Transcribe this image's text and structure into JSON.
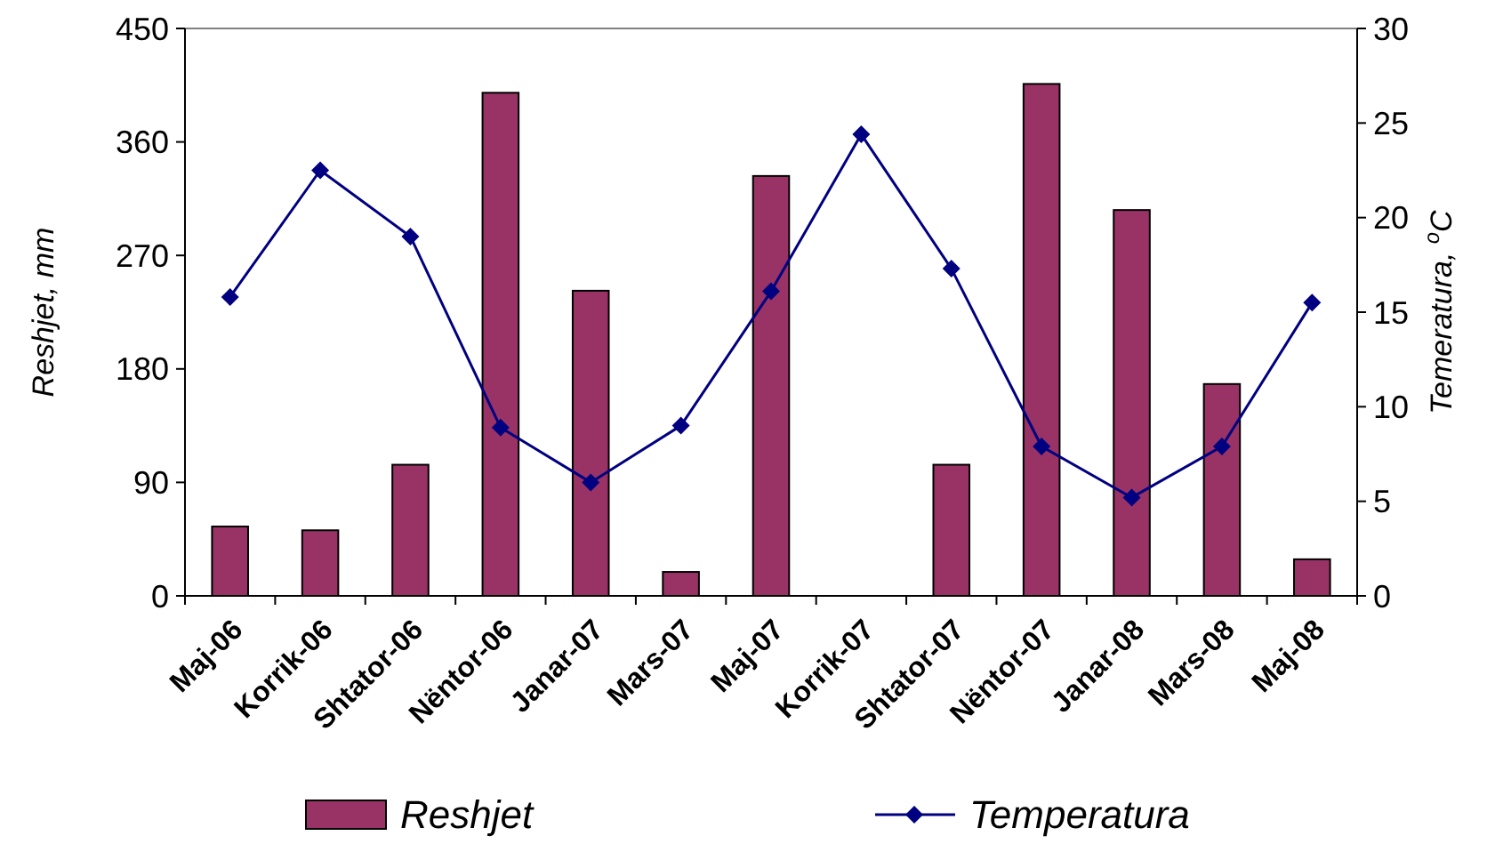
{
  "chart_data": {
    "type": "bar",
    "ylabel": "Reshjet, mm",
    "y2label": "Temeratura, $^{o}$C",
    "categories": [
      "Maj-06",
      "Korrik-06",
      "Shtator-06",
      "Nëntor-06",
      "Janar-07",
      "Mars-07",
      "Maj-07",
      "Korrik-07",
      "Shtator-07",
      "Nëntor-07",
      "Janar-08",
      "Mars-08",
      "Maj-08"
    ],
    "series": [
      {
        "name": "Reshjet",
        "color": "#993366",
        "values": [
          55,
          52,
          104,
          399,
          242,
          19,
          333,
          null,
          104,
          406,
          306,
          168,
          29
        ]
      },
      {
        "name": "Temperatura",
        "type": "line",
        "axis": "y2",
        "color": "#000080",
        "marker": "diamond",
        "values": [
          15.8,
          22.5,
          19.0,
          8.9,
          6.0,
          9.0,
          16.1,
          24.4,
          17.3,
          7.9,
          5.2,
          7.9,
          15.5
        ]
      }
    ],
    "ylim": [
      0,
      450
    ],
    "yticks": [
      0,
      90,
      180,
      270,
      360,
      450
    ],
    "y2lim": [
      0,
      30
    ],
    "y2ticks": [
      0,
      5,
      10,
      15,
      20,
      25,
      30
    ],
    "grid": false,
    "legend": "bottom"
  }
}
